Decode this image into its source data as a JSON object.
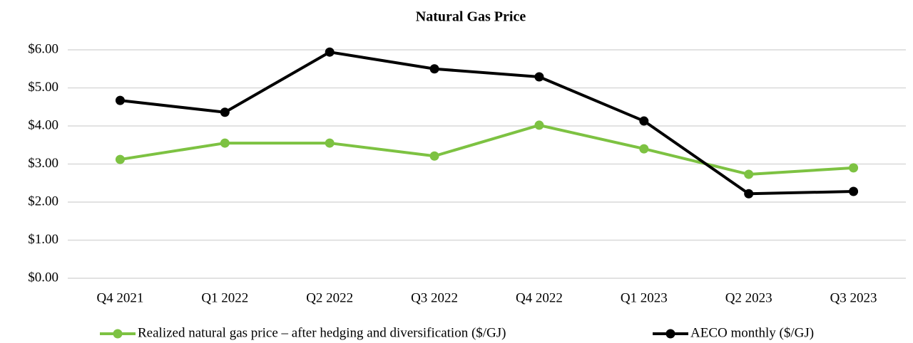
{
  "chart_data": {
    "type": "line",
    "title": "Natural Gas Price",
    "categories": [
      "Q4 2021",
      "Q1 2022",
      "Q2 2022",
      "Q3 2022",
      "Q4 2022",
      "Q1 2023",
      "Q2 2023",
      "Q3 2023"
    ],
    "series": [
      {
        "name": "Realized natural gas price – after hedging and diversification ($/GJ)",
        "color": "#7dc242",
        "values": [
          3.12,
          3.55,
          3.55,
          3.21,
          4.02,
          3.4,
          2.73,
          2.9
        ]
      },
      {
        "name": "AECO monthly ($/GJ)",
        "color": "#000000",
        "values": [
          4.67,
          4.36,
          5.94,
          5.5,
          5.29,
          4.13,
          2.22,
          2.28
        ]
      }
    ],
    "ylim": [
      0,
      6
    ],
    "yticks": [
      {
        "value": 0,
        "label": "$0.00"
      },
      {
        "value": 1,
        "label": "$1.00"
      },
      {
        "value": 2,
        "label": "$2.00"
      },
      {
        "value": 3,
        "label": "$3.00"
      },
      {
        "value": 4,
        "label": "$4.00"
      },
      {
        "value": 5,
        "label": "$5.00"
      },
      {
        "value": 6,
        "label": "$6.00"
      }
    ],
    "grid": true,
    "legend": "bottom"
  }
}
